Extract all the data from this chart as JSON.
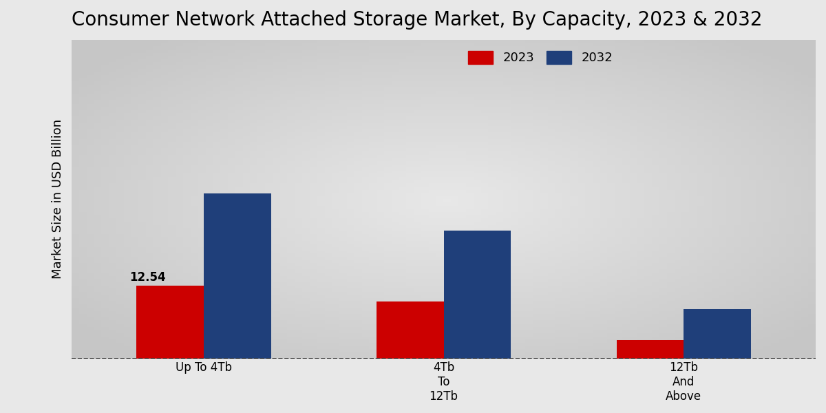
{
  "title": "Consumer Network Attached Storage Market, By Capacity, 2023 & 2032",
  "ylabel": "Market Size in USD Billion",
  "categories": [
    "Up To 4Tb",
    "4Tb\nTo\n12Tb",
    "12Tb\nAnd\nAbove"
  ],
  "values_2023": [
    12.54,
    9.8,
    3.2
  ],
  "values_2032": [
    28.5,
    22.0,
    8.5
  ],
  "color_2023": "#CC0000",
  "color_2032": "#1F3F7A",
  "label_2023": "2023",
  "label_2032": "2032",
  "bar_annotation": "12.54",
  "background_color_center": "#E8E8E8",
  "background_color_edge": "#C8C8C8",
  "title_fontsize": 20,
  "axis_label_fontsize": 13,
  "tick_fontsize": 12,
  "legend_fontsize": 13,
  "bar_width": 0.28,
  "ylim": [
    0,
    55
  ],
  "xlim_left": -0.55,
  "xlim_right": 2.55
}
